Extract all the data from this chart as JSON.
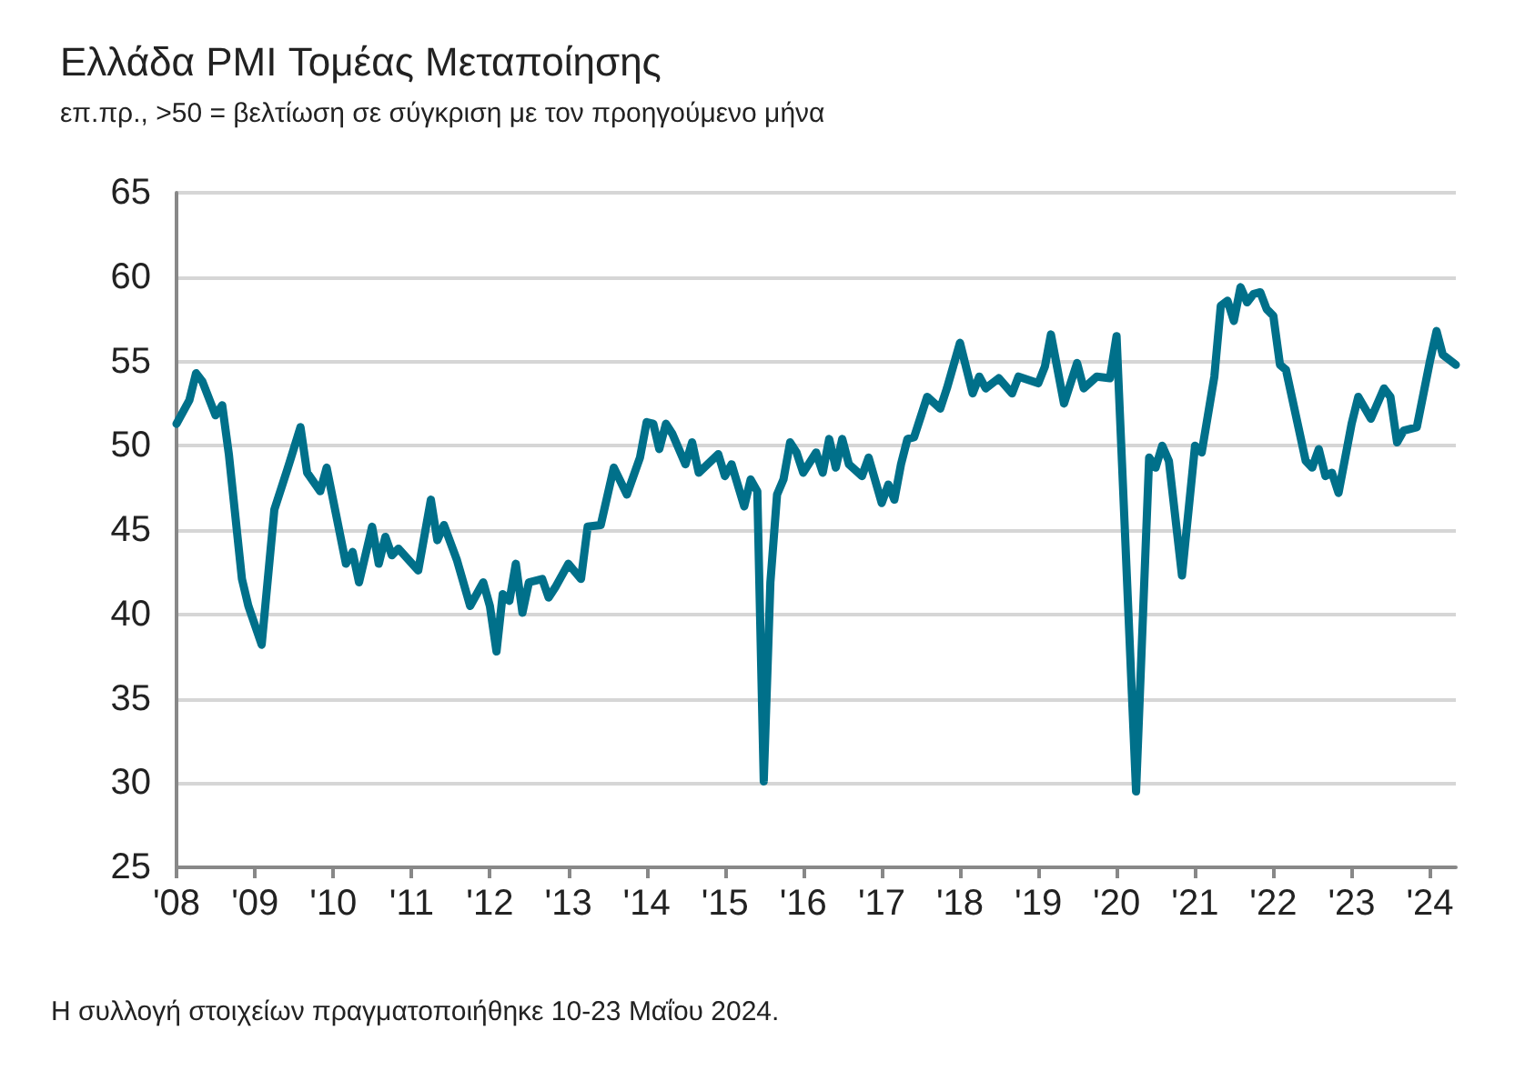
{
  "chart_data": {
    "type": "line",
    "title": "Ελλάδα PMI Τομέας Μεταποίησης",
    "subtitle": "επ.πρ., >50 = βελτίωση σε σύγκριση με τον προηγούμενο μήνα",
    "annotations": [
      "Η συλλογή στοιχείων πραγματοποιήθηκε 10-23 Μαΐου 2024."
    ],
    "x": [
      "2008-01",
      "2008-03",
      "2008-04",
      "2008-05",
      "2008-07",
      "2008-08",
      "2008-09",
      "2008-11",
      "2008-12",
      "2009-02",
      "2009-04",
      "2009-06",
      "2009-08",
      "2009-09",
      "2009-11",
      "2009-12",
      "2010-03",
      "2010-04",
      "2010-05",
      "2010-07",
      "2010-08",
      "2010-09",
      "2010-10",
      "2010-11",
      "2011-02",
      "2011-04",
      "2011-05",
      "2011-06",
      "2011-08",
      "2011-10",
      "2011-12",
      "2012-01",
      "2012-02",
      "2012-03",
      "2012-04",
      "2012-05",
      "2012-06",
      "2012-07",
      "2012-09",
      "2012-10",
      "2012-11",
      "2013-01",
      "2013-03",
      "2013-04",
      "2013-06",
      "2013-08",
      "2013-10",
      "2013-12",
      "2014-01",
      "2014-02",
      "2014-03",
      "2014-04",
      "2014-05",
      "2014-07",
      "2014-08",
      "2014-09",
      "2014-12",
      "2015-01",
      "2015-02",
      "2015-04",
      "2015-05",
      "2015-06",
      "2015-07",
      "2015-08",
      "2015-09",
      "2015-10",
      "2015-11",
      "2015-12",
      "2016-01",
      "2016-03",
      "2016-04",
      "2016-05",
      "2016-06",
      "2016-07",
      "2016-08",
      "2016-10",
      "2016-11",
      "2017-01",
      "2017-02",
      "2017-03",
      "2017-04",
      "2017-05",
      "2017-06",
      "2017-08",
      "2017-10",
      "2017-11",
      "2018-01",
      "2018-03",
      "2018-04",
      "2018-05",
      "2018-07",
      "2018-09",
      "2018-10",
      "2019-01",
      "2019-02",
      "2019-03",
      "2019-05",
      "2019-07",
      "2019-08",
      "2019-10",
      "2019-12",
      "2020-01",
      "2020-04",
      "2020-06",
      "2020-07",
      "2020-08",
      "2020-09",
      "2020-11",
      "2021-01",
      "2021-02",
      "2021-04",
      "2021-05",
      "2021-06",
      "2021-07",
      "2021-08",
      "2021-09",
      "2021-10",
      "2021-11",
      "2021-12",
      "2022-01",
      "2022-02",
      "2022-03",
      "2022-06",
      "2022-07",
      "2022-08",
      "2022-09",
      "2022-10",
      "2022-11",
      "2023-01",
      "2023-02",
      "2023-04",
      "2023-06",
      "2023-07",
      "2023-08",
      "2023-09",
      "2023-11",
      "2024-01",
      "2024-02",
      "2024-03",
      "2024-05"
    ],
    "series": [
      {
        "color": "#00708a",
        "values": [
          51.3,
          52.7,
          54.3,
          53.8,
          51.8,
          52.4,
          49.5,
          42.1,
          40.5,
          38.2,
          46.2,
          48.6,
          51.1,
          48.4,
          47.3,
          48.7,
          43.0,
          43.7,
          41.9,
          45.2,
          43.0,
          44.6,
          43.5,
          43.9,
          42.6,
          46.8,
          44.4,
          45.3,
          43.2,
          40.5,
          41.9,
          40.5,
          37.8,
          41.2,
          40.8,
          43.0,
          40.1,
          41.9,
          42.1,
          41.0,
          41.6,
          43.0,
          42.1,
          45.2,
          45.3,
          48.7,
          47.1,
          49.3,
          51.4,
          51.3,
          49.8,
          51.3,
          50.7,
          48.9,
          50.2,
          48.4,
          49.5,
          48.2,
          48.9,
          46.4,
          48.0,
          47.3,
          30.1,
          41.9,
          47.1,
          48.0,
          50.2,
          49.6,
          48.4,
          49.6,
          48.4,
          50.4,
          48.7,
          50.4,
          48.9,
          48.2,
          49.3,
          46.6,
          47.7,
          46.8,
          48.9,
          50.4,
          50.5,
          52.9,
          52.2,
          53.4,
          56.1,
          53.1,
          54.1,
          53.4,
          54.0,
          53.1,
          54.1,
          53.7,
          54.7,
          56.6,
          52.5,
          54.9,
          53.4,
          54.1,
          54.0,
          56.5,
          29.5,
          49.3,
          48.7,
          50.0,
          49.1,
          42.3,
          50.0,
          49.6,
          54.1,
          58.3,
          58.6,
          57.4,
          59.4,
          58.5,
          59.0,
          59.1,
          58.1,
          57.7,
          54.8,
          54.5,
          49.1,
          48.7,
          49.8,
          48.2,
          48.4,
          47.2,
          51.3,
          52.9,
          51.6,
          53.4,
          52.9,
          50.2,
          50.9,
          51.1,
          55.0,
          56.8,
          55.4,
          54.8
        ]
      }
    ],
    "xlim": [
      "2008-01",
      "2024-05"
    ],
    "xticks": [
      {
        "value": "2008",
        "label": "'08"
      },
      {
        "value": "2009",
        "label": "'09"
      },
      {
        "value": "2010",
        "label": "'10"
      },
      {
        "value": "2011",
        "label": "'11"
      },
      {
        "value": "2012",
        "label": "'12"
      },
      {
        "value": "2013",
        "label": "'13"
      },
      {
        "value": "2014",
        "label": "'14"
      },
      {
        "value": "2015",
        "label": "'15"
      },
      {
        "value": "2016",
        "label": "'16"
      },
      {
        "value": "2017",
        "label": "'17"
      },
      {
        "value": "2018",
        "label": "'18"
      },
      {
        "value": "2019",
        "label": "'19"
      },
      {
        "value": "2020",
        "label": "'20"
      },
      {
        "value": "2021",
        "label": "'21"
      },
      {
        "value": "2022",
        "label": "'22"
      },
      {
        "value": "2023",
        "label": "'23"
      },
      {
        "value": "2024",
        "label": "'24"
      }
    ],
    "ylim": [
      25,
      65
    ],
    "yticks": [
      25,
      30,
      35,
      40,
      45,
      50,
      55,
      60,
      65
    ],
    "grid": "y",
    "marker": "none",
    "line_style": "solid"
  }
}
